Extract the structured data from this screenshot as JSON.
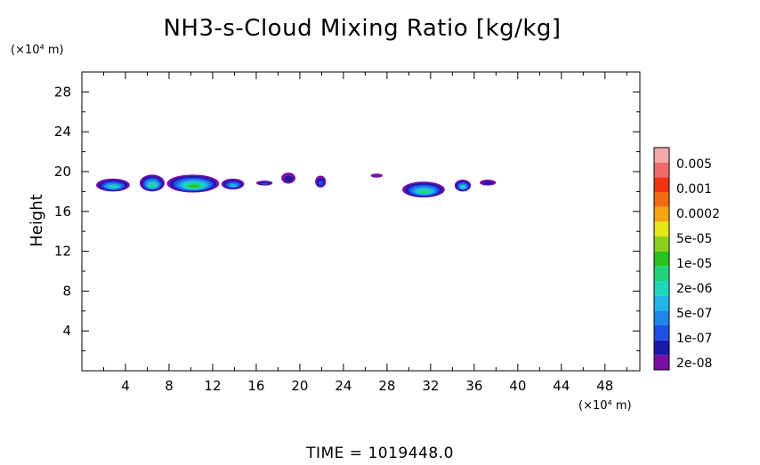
{
  "chart_data": {
    "type": "heatmap",
    "title": "NH3-s-Cloud Mixing Ratio [kg/kg]",
    "xlabel": "",
    "xunit": "(×10⁴ m)",
    "ylabel": "Height",
    "yunit": "(×10⁴ m)",
    "xlim": [
      0,
      51.2
    ],
    "ylim": [
      0,
      30
    ],
    "x_ticks": [
      "4",
      "8",
      "12",
      "16",
      "20",
      "24",
      "28",
      "32",
      "36",
      "40",
      "44",
      "48"
    ],
    "y_ticks": [
      "4",
      "8",
      "12",
      "16",
      "20",
      "24",
      "28"
    ],
    "colorbar": {
      "labels": [
        "0.005",
        "0.001",
        "0.0002",
        "5e-05",
        "1e-05",
        "2e-06",
        "5e-07",
        "1e-07",
        "2e-08"
      ],
      "colors": [
        "#7a0fa8",
        "#1a1aa8",
        "#1f4fe6",
        "#1f86ea",
        "#22b6e8",
        "#20d8b8",
        "#23d37a",
        "#27c31f",
        "#8ad01f",
        "#e6e619",
        "#f5a411",
        "#f26a11",
        "#ee3311",
        "#ef6a6a",
        "#f4a8a8"
      ]
    },
    "cloud_blobs": [
      {
        "x": [
          1.3,
          4.4
        ],
        "y": [
          18.0,
          19.3
        ],
        "max_level": 6
      },
      {
        "x": [
          5.3,
          7.6
        ],
        "y": [
          18.0,
          19.7
        ],
        "max_level": 7
      },
      {
        "x": [
          7.8,
          12.6
        ],
        "y": [
          17.9,
          19.7
        ],
        "max_level": 8
      },
      {
        "x": [
          12.8,
          14.9
        ],
        "y": [
          18.2,
          19.3
        ],
        "max_level": 5
      },
      {
        "x": [
          16.0,
          17.5
        ],
        "y": [
          18.6,
          19.1
        ],
        "max_level": 3
      },
      {
        "x": [
          18.3,
          19.6
        ],
        "y": [
          18.8,
          19.9
        ],
        "max_level": 2
      },
      {
        "x": [
          21.4,
          22.4
        ],
        "y": [
          18.4,
          19.6
        ],
        "max_level": 3
      },
      {
        "x": [
          26.5,
          27.6
        ],
        "y": [
          19.4,
          19.8
        ],
        "max_level": 1
      },
      {
        "x": [
          29.4,
          33.3
        ],
        "y": [
          17.4,
          19.0
        ],
        "max_level": 7
      },
      {
        "x": [
          34.2,
          35.7
        ],
        "y": [
          18.0,
          19.2
        ],
        "max_level": 6
      },
      {
        "x": [
          36.5,
          38.0
        ],
        "y": [
          18.6,
          19.2
        ],
        "max_level": 2
      }
    ]
  },
  "time_label": "TIME = 1019448.0"
}
